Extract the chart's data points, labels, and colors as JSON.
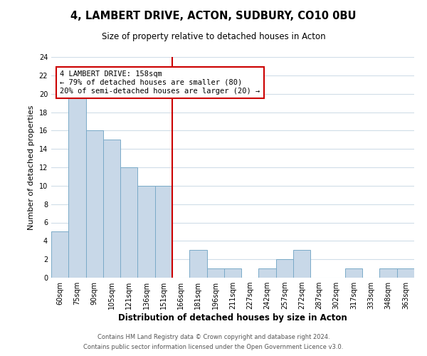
{
  "title": "4, LAMBERT DRIVE, ACTON, SUDBURY, CO10 0BU",
  "subtitle": "Size of property relative to detached houses in Acton",
  "xlabel": "Distribution of detached houses by size in Acton",
  "ylabel": "Number of detached properties",
  "bin_labels": [
    "60sqm",
    "75sqm",
    "90sqm",
    "105sqm",
    "121sqm",
    "136sqm",
    "151sqm",
    "166sqm",
    "181sqm",
    "196sqm",
    "211sqm",
    "227sqm",
    "242sqm",
    "257sqm",
    "272sqm",
    "287sqm",
    "302sqm",
    "317sqm",
    "333sqm",
    "348sqm",
    "363sqm"
  ],
  "bar_heights": [
    5,
    20,
    16,
    15,
    12,
    10,
    10,
    0,
    3,
    1,
    1,
    0,
    1,
    2,
    3,
    0,
    0,
    1,
    0,
    1,
    1
  ],
  "bar_color": "#c8d8e8",
  "bar_edge_color": "#7aaac8",
  "reference_line_x": 7,
  "reference_line_color": "#cc0000",
  "annotation_text": "4 LAMBERT DRIVE: 158sqm\n← 79% of detached houses are smaller (80)\n20% of semi-detached houses are larger (20) →",
  "annotation_box_edge_color": "#cc0000",
  "ylim": [
    0,
    24
  ],
  "yticks": [
    0,
    2,
    4,
    6,
    8,
    10,
    12,
    14,
    16,
    18,
    20,
    22,
    24
  ],
  "footer_line1": "Contains HM Land Registry data © Crown copyright and database right 2024.",
  "footer_line2": "Contains public sector information licensed under the Open Government Licence v3.0.",
  "background_color": "#ffffff",
  "grid_color": "#d0dde8"
}
